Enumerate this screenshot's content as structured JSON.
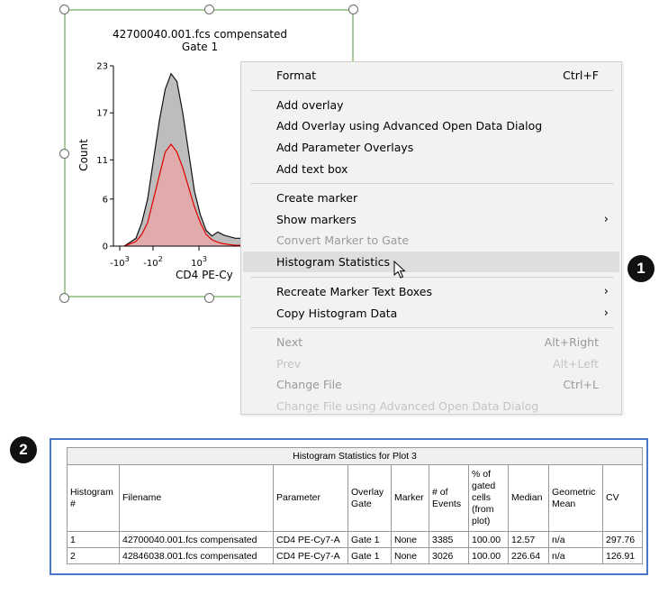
{
  "plot": {
    "title_line1": "42700040.001.fcs compensated",
    "title_line2": "Gate 1",
    "y_label": "Count",
    "x_label": "CD4 PE-Cy",
    "y_ticks": [
      "23",
      "17",
      "11",
      "6",
      "0"
    ],
    "x_ticks": [
      {
        "base": "-10",
        "exp": "3"
      },
      {
        "base": "-10",
        "exp": "2"
      },
      {
        "base": "10",
        "exp": "3"
      }
    ],
    "colors": {
      "fill_gray": "#bdbdbd",
      "fill_red": "#e8a8a8",
      "line_red": "#e00000",
      "frame": "#a7cc99"
    }
  },
  "chart_data": {
    "type": "area",
    "xlabel": "CD4 PE-Cy",
    "ylabel": "Count",
    "ylim": [
      0,
      23
    ],
    "y_ticks": [
      0,
      6,
      11,
      17,
      23
    ],
    "x_ticks": [
      "-10^3",
      "-10^2",
      "10^3"
    ],
    "series": [
      {
        "color": "#bdbdbd",
        "x": [
          0,
          5,
          10,
          15,
          20,
          25,
          30,
          35,
          40,
          45,
          50,
          55,
          60,
          65,
          70,
          75,
          80,
          85,
          90,
          95,
          100
        ],
        "values": [
          0,
          0.5,
          1,
          3,
          6,
          11,
          16,
          20,
          22,
          21,
          17,
          12,
          7,
          4,
          2,
          1.3,
          1.8,
          1.4,
          1.2,
          1,
          1
        ]
      },
      {
        "color": "#e00000",
        "x": [
          0,
          5,
          10,
          15,
          20,
          25,
          30,
          35,
          40,
          45,
          50,
          55,
          60,
          65,
          70,
          75,
          80,
          85,
          90,
          95,
          100
        ],
        "values": [
          0,
          0.3,
          0.6,
          1.5,
          3,
          6,
          9,
          12,
          13,
          12,
          10,
          7.5,
          5,
          3,
          1.5,
          0.8,
          0.5,
          0.3,
          0.2,
          0.1,
          0.1
        ]
      }
    ]
  },
  "menu": {
    "items": [
      {
        "label": "Format",
        "shortcut": "Ctrl+F"
      },
      {
        "label": "Add overlay"
      },
      {
        "label": "Add Overlay using Advanced Open Data Dialog"
      },
      {
        "label": "Add Parameter Overlays"
      },
      {
        "label": "Add text box"
      },
      {
        "label": "Create marker"
      },
      {
        "label": "Show markers",
        "arrow": "›"
      },
      {
        "label": "Convert Marker to Gate"
      },
      {
        "label": "Histogram Statistics"
      },
      {
        "label": "Recreate Marker Text Boxes",
        "arrow": "›"
      },
      {
        "label": "Copy Histogram Data",
        "arrow": "›"
      },
      {
        "label": "Next",
        "shortcut": "Alt+Right"
      },
      {
        "label": "Prev",
        "shortcut": "Alt+Left"
      },
      {
        "label": "Change File",
        "shortcut": "Ctrl+L"
      },
      {
        "label": "Change File using Advanced Open Data Dialog"
      }
    ]
  },
  "callouts": {
    "one": "1",
    "two": "2"
  },
  "stats": {
    "caption": "Histogram Statistics for Plot 3",
    "headers": [
      "Histogram #",
      "Filename",
      "Parameter",
      "Overlay Gate",
      "Marker",
      "# of Events",
      "% of gated cells (from plot)",
      "Median",
      "Geometric Mean",
      "CV"
    ],
    "rows": [
      [
        "1",
        "42700040.001.fcs compensated",
        "CD4 PE-Cy7-A",
        "Gate 1",
        "None",
        "3385",
        "100.00",
        "12.57",
        "n/a",
        "297.76"
      ],
      [
        "2",
        "42846038.001.fcs compensated",
        "CD4 PE-Cy7-A",
        "Gate 1",
        "None",
        "3026",
        "100.00",
        "226.64",
        "n/a",
        "126.91"
      ]
    ]
  }
}
